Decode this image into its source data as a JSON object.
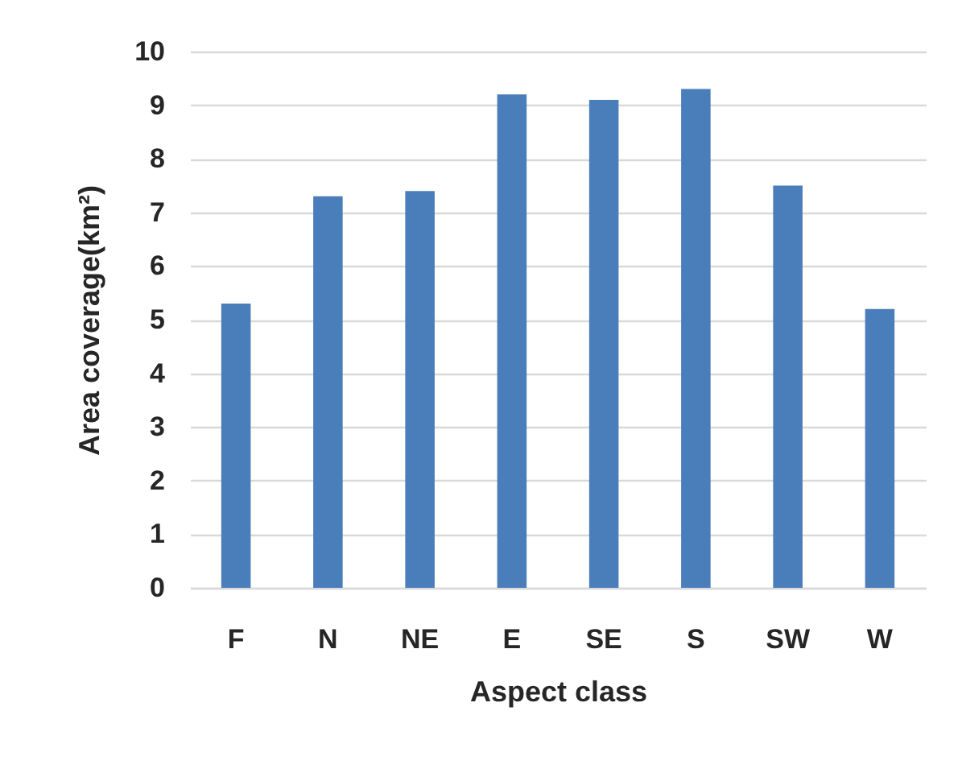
{
  "chart_data": {
    "type": "bar",
    "xlabel": "Aspect class",
    "ylabel": "Area coverage(km²)",
    "categories": [
      "F",
      "N",
      "NE",
      "E",
      "SE",
      "S",
      "SW",
      "W"
    ],
    "values": [
      5.3,
      7.3,
      7.4,
      9.2,
      9.1,
      9.3,
      7.5,
      5.2
    ],
    "color": "#4a7ebb",
    "ylim": [
      0,
      10
    ],
    "yticks": [
      0,
      1,
      2,
      3,
      4,
      5,
      6,
      7,
      8,
      9,
      10
    ],
    "grid": "y"
  }
}
